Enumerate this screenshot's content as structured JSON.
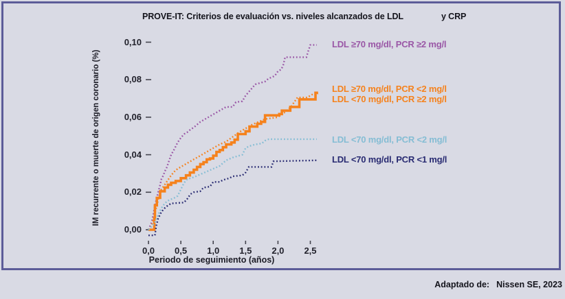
{
  "title": {
    "text_main": "PROVE-IT: Criterios de evaluación vs. niveles alcanzados de LDL",
    "text_suffix": "y CRP"
  },
  "footer": {
    "label": "Adaptado de:",
    "source": "Nissen SE, 2023"
  },
  "colors": {
    "background": "#d9dae4",
    "frame_border": "#5c5c98",
    "purple": "#9a57a6",
    "orange": "#f5821d",
    "light_blue": "#85bdd4",
    "navy": "#292b72"
  },
  "chart_data": {
    "type": "line",
    "title": "PROVE-IT: Criterios de evaluación vs. niveles alcanzados de LDL y CRP",
    "xlabel": "Periodo de seguimiento (años)",
    "ylabel": "IM recurrente o muerte de origen coronario (%)",
    "xlim": [
      0,
      2.7
    ],
    "ylim": [
      0,
      0.1
    ],
    "grid": false,
    "legend_position": "right of curve ends",
    "x_ticks": [
      "0,0",
      "0,5",
      "1,0",
      "1,5",
      "2,0",
      "2,5"
    ],
    "x_tick_values": [
      0,
      0.5,
      1.0,
      1.5,
      2.0,
      2.5
    ],
    "y_ticks": [
      "0,00",
      "0,02",
      "0,04",
      "0,06",
      "0,08",
      "0,10"
    ],
    "y_tick_values": [
      0,
      0.02,
      0.04,
      0.06,
      0.08,
      0.1
    ],
    "series": [
      {
        "id": "ldl-ge70-pcr-ge2",
        "name": "LDL ≥70 mg/dl, PCR ≥2 mg/l",
        "color": "#9a57a6",
        "line_style": "dotted",
        "step": false,
        "points": [
          [
            0,
            0
          ],
          [
            0.05,
            0.004
          ],
          [
            0.08,
            0.009
          ],
          [
            0.1,
            0.013
          ],
          [
            0.13,
            0.017
          ],
          [
            0.15,
            0.02
          ],
          [
            0.18,
            0.024
          ],
          [
            0.2,
            0.027
          ],
          [
            0.23,
            0.029
          ],
          [
            0.25,
            0.031
          ],
          [
            0.28,
            0.033
          ],
          [
            0.3,
            0.035
          ],
          [
            0.33,
            0.038
          ],
          [
            0.35,
            0.04
          ],
          [
            0.4,
            0.043
          ],
          [
            0.45,
            0.0465
          ],
          [
            0.5,
            0.049
          ],
          [
            0.55,
            0.051
          ],
          [
            0.6,
            0.052
          ],
          [
            0.65,
            0.0535
          ],
          [
            0.7,
            0.0545
          ],
          [
            0.75,
            0.056
          ],
          [
            0.8,
            0.0575
          ],
          [
            0.85,
            0.0585
          ],
          [
            0.9,
            0.0595
          ],
          [
            0.95,
            0.0605
          ],
          [
            1.0,
            0.0615
          ],
          [
            1.05,
            0.0625
          ],
          [
            1.1,
            0.0635
          ],
          [
            1.15,
            0.0645
          ],
          [
            1.2,
            0.0655
          ],
          [
            1.3,
            0.0655
          ],
          [
            1.35,
            0.068
          ],
          [
            1.45,
            0.0685
          ],
          [
            1.5,
            0.0715
          ],
          [
            1.55,
            0.0735
          ],
          [
            1.6,
            0.0755
          ],
          [
            1.65,
            0.0775
          ],
          [
            1.7,
            0.078
          ],
          [
            1.8,
            0.079
          ],
          [
            1.85,
            0.0805
          ],
          [
            1.95,
            0.082
          ],
          [
            2.0,
            0.0845
          ],
          [
            2.05,
            0.0855
          ],
          [
            2.08,
            0.0875
          ],
          [
            2.11,
            0.092
          ],
          [
            2.44,
            0.092
          ],
          [
            2.47,
            0.0955
          ],
          [
            2.5,
            0.0985
          ],
          [
            2.6,
            0.0985
          ]
        ]
      },
      {
        "id": "ldl-ge70-pcr-lt2",
        "name": "LDL ≥70 mg/dl, PCR <2 mg/l",
        "color": "#f5821d",
        "line_style": "dotted",
        "step": false,
        "points": [
          [
            0,
            0
          ],
          [
            0.05,
            0.002
          ],
          [
            0.08,
            0.006
          ],
          [
            0.1,
            0.009
          ],
          [
            0.13,
            0.013
          ],
          [
            0.15,
            0.016
          ],
          [
            0.2,
            0.0215
          ],
          [
            0.25,
            0.024
          ],
          [
            0.3,
            0.0265
          ],
          [
            0.35,
            0.029
          ],
          [
            0.4,
            0.031
          ],
          [
            0.45,
            0.0325
          ],
          [
            0.5,
            0.0335
          ],
          [
            0.6,
            0.0355
          ],
          [
            0.7,
            0.0375
          ],
          [
            0.8,
            0.0395
          ],
          [
            0.9,
            0.0415
          ],
          [
            1.0,
            0.0435
          ],
          [
            1.1,
            0.0455
          ],
          [
            1.2,
            0.047
          ],
          [
            1.3,
            0.0495
          ],
          [
            1.4,
            0.052
          ],
          [
            1.5,
            0.054
          ],
          [
            1.6,
            0.056
          ],
          [
            1.7,
            0.0575
          ],
          [
            1.8,
            0.059
          ],
          [
            1.9,
            0.0595
          ],
          [
            2.0,
            0.06
          ],
          [
            2.05,
            0.0615
          ],
          [
            2.1,
            0.0625
          ],
          [
            2.15,
            0.064
          ],
          [
            2.2,
            0.0655
          ],
          [
            2.25,
            0.068
          ],
          [
            2.3,
            0.0705
          ],
          [
            2.45,
            0.0705
          ],
          [
            2.55,
            0.0725
          ],
          [
            2.62,
            0.0725
          ]
        ]
      },
      {
        "id": "ldl-lt70-pcr-ge2",
        "name": "LDL <70 mg/dl, PCR ≥2 mg/l",
        "color": "#f5821d",
        "line_style": "solid",
        "step": true,
        "points": [
          [
            0,
            0
          ],
          [
            0.07,
            0
          ],
          [
            0.09,
            0.006
          ],
          [
            0.1,
            0.013
          ],
          [
            0.13,
            0.017
          ],
          [
            0.18,
            0.0205
          ],
          [
            0.25,
            0.0225
          ],
          [
            0.3,
            0.024
          ],
          [
            0.35,
            0.025
          ],
          [
            0.42,
            0.026
          ],
          [
            0.5,
            0.0275
          ],
          [
            0.58,
            0.029
          ],
          [
            0.64,
            0.0305
          ],
          [
            0.7,
            0.032
          ],
          [
            0.75,
            0.0335
          ],
          [
            0.8,
            0.035
          ],
          [
            0.85,
            0.036
          ],
          [
            0.9,
            0.0375
          ],
          [
            0.95,
            0.038
          ],
          [
            1.0,
            0.0395
          ],
          [
            1.05,
            0.0415
          ],
          [
            1.1,
            0.0425
          ],
          [
            1.15,
            0.044
          ],
          [
            1.2,
            0.0455
          ],
          [
            1.28,
            0.0465
          ],
          [
            1.33,
            0.048
          ],
          [
            1.38,
            0.051
          ],
          [
            1.5,
            0.0525
          ],
          [
            1.56,
            0.055
          ],
          [
            1.68,
            0.0565
          ],
          [
            1.74,
            0.0575
          ],
          [
            1.8,
            0.061
          ],
          [
            2.02,
            0.0617
          ],
          [
            2.06,
            0.0635
          ],
          [
            2.19,
            0.0655
          ],
          [
            2.33,
            0.0695
          ],
          [
            2.56,
            0.0695
          ],
          [
            2.58,
            0.073
          ],
          [
            2.62,
            0.073
          ]
        ]
      },
      {
        "id": "ldl-lt70-pcr-lt2",
        "name": "LDL <70 mg/dl, PCR <2 mg/l",
        "color": "#85bdd4",
        "line_style": "dotted",
        "step": false,
        "points": [
          [
            0,
            0
          ],
          [
            0.08,
            0.003
          ],
          [
            0.1,
            0.004
          ],
          [
            0.15,
            0.008
          ],
          [
            0.2,
            0.0115
          ],
          [
            0.25,
            0.014
          ],
          [
            0.3,
            0.0155
          ],
          [
            0.4,
            0.017
          ],
          [
            0.45,
            0.018
          ],
          [
            0.5,
            0.0215
          ],
          [
            0.55,
            0.025
          ],
          [
            0.6,
            0.027
          ],
          [
            0.7,
            0.028
          ],
          [
            0.8,
            0.0295
          ],
          [
            0.9,
            0.031
          ],
          [
            1.0,
            0.0325
          ],
          [
            1.1,
            0.034
          ],
          [
            1.2,
            0.037
          ],
          [
            1.3,
            0.0385
          ],
          [
            1.45,
            0.04
          ],
          [
            1.5,
            0.0435
          ],
          [
            1.55,
            0.0445
          ],
          [
            1.65,
            0.0455
          ],
          [
            1.75,
            0.046
          ],
          [
            1.8,
            0.0475
          ],
          [
            1.86,
            0.0483
          ],
          [
            2.6,
            0.0483
          ]
        ]
      },
      {
        "id": "ldl-lt70-pcr-lt1",
        "name": "LDL <70 mg/dl, PCR <1 mg/l",
        "color": "#292b72",
        "line_style": "dotted",
        "step": false,
        "points": [
          [
            0,
            -0.003
          ],
          [
            0.1,
            -0.003
          ],
          [
            0.12,
            0.002
          ],
          [
            0.15,
            0.006
          ],
          [
            0.2,
            0.0095
          ],
          [
            0.25,
            0.0115
          ],
          [
            0.3,
            0.013
          ],
          [
            0.35,
            0.014
          ],
          [
            0.55,
            0.0145
          ],
          [
            0.6,
            0.0165
          ],
          [
            0.65,
            0.019
          ],
          [
            0.7,
            0.02
          ],
          [
            0.8,
            0.0205
          ],
          [
            0.85,
            0.0225
          ],
          [
            0.95,
            0.023
          ],
          [
            1.0,
            0.0255
          ],
          [
            1.1,
            0.0255
          ],
          [
            1.15,
            0.0265
          ],
          [
            1.25,
            0.0275
          ],
          [
            1.3,
            0.0285
          ],
          [
            1.45,
            0.029
          ],
          [
            1.5,
            0.0305
          ],
          [
            1.55,
            0.0335
          ],
          [
            1.9,
            0.0335
          ],
          [
            1.93,
            0.0365
          ],
          [
            2.6,
            0.037
          ]
        ]
      }
    ]
  }
}
